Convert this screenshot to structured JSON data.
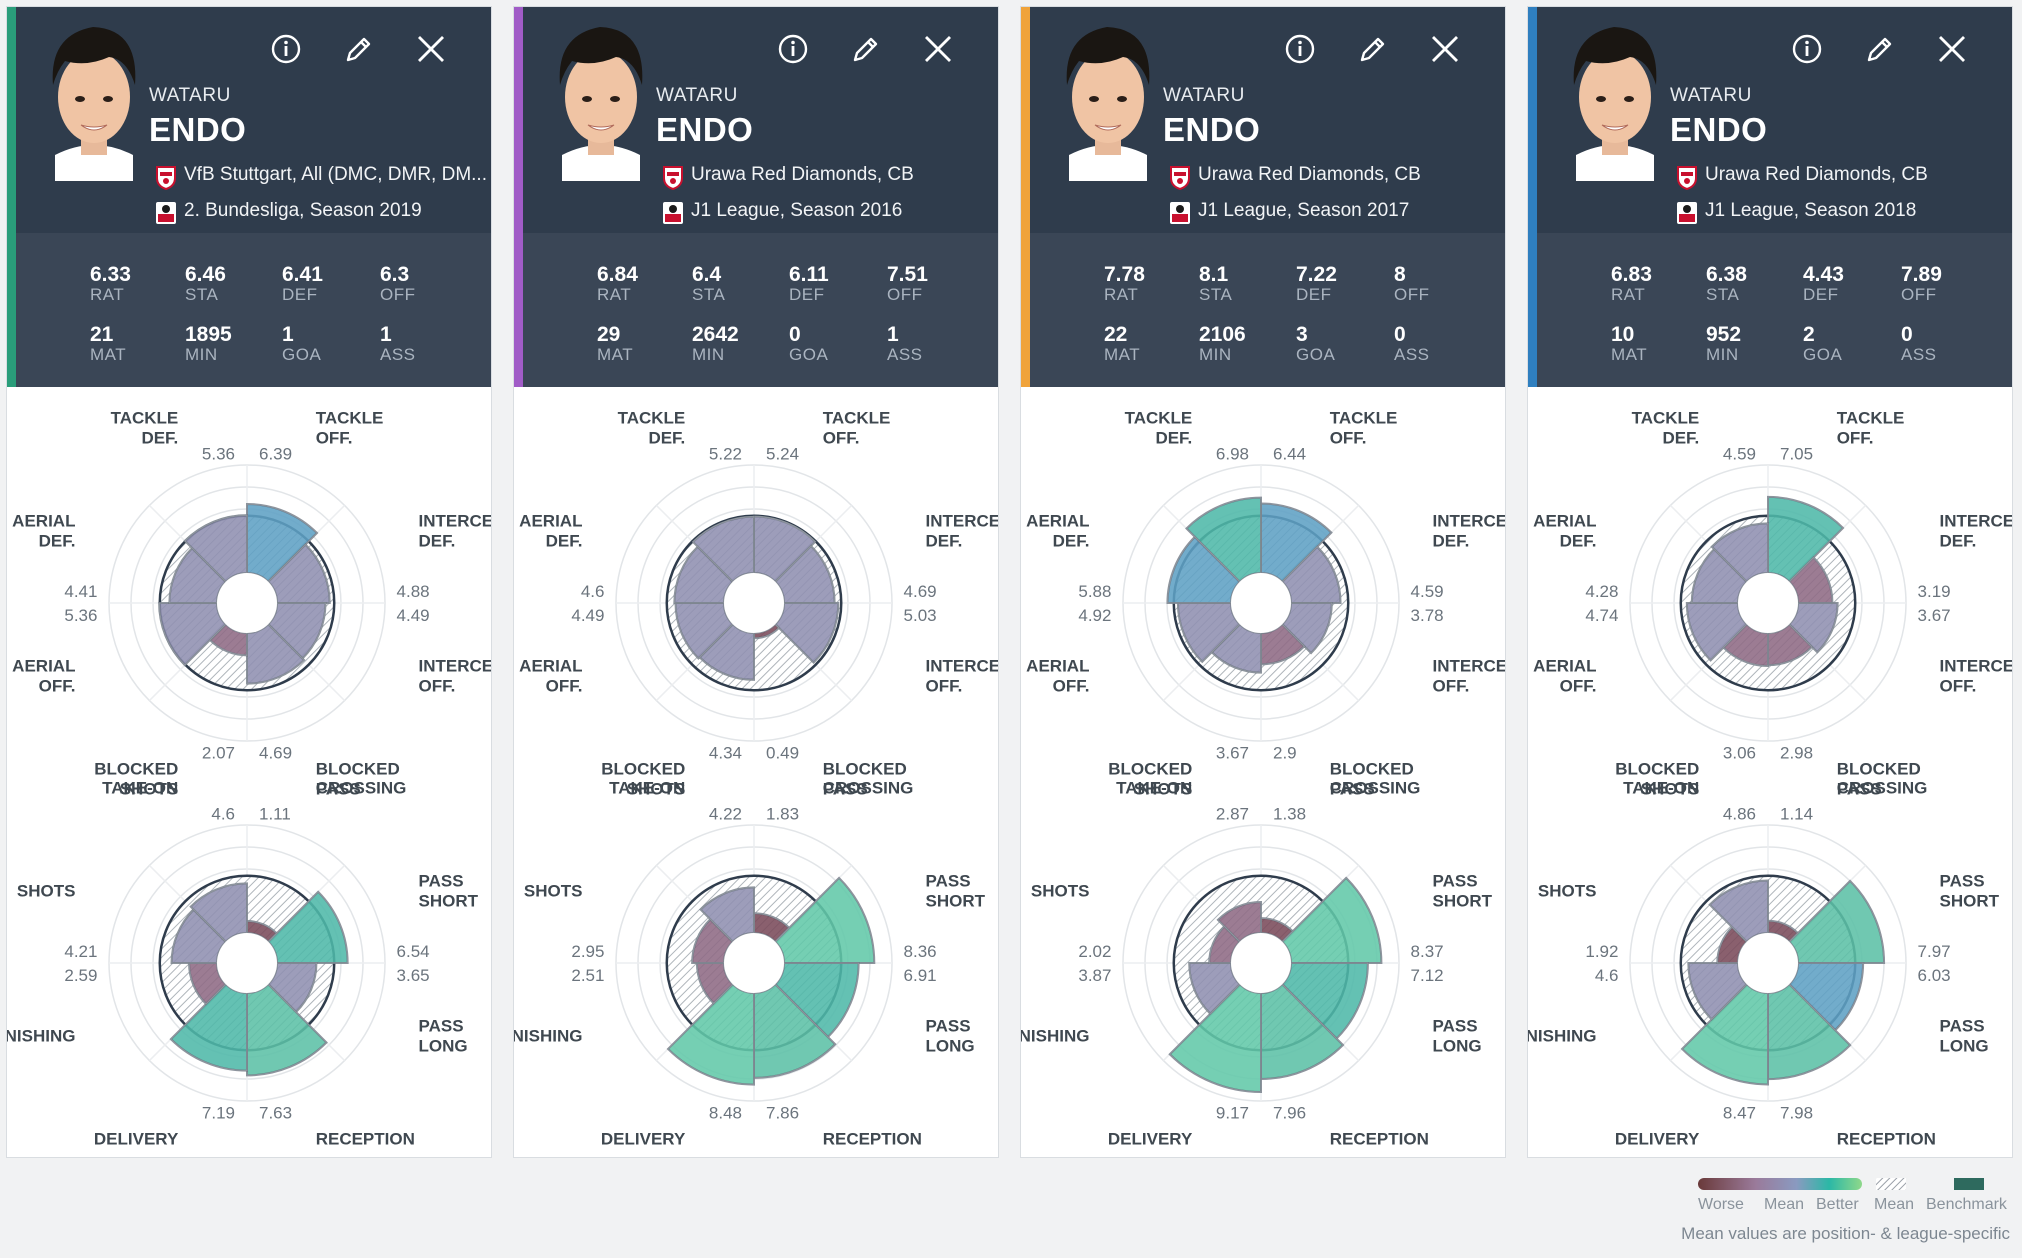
{
  "colors": {
    "header_bg": "#2f3c4c",
    "stats_bg": "#3a4656",
    "accents": [
      "#2a9d7a",
      "#a15cc7",
      "#f0a33a",
      "#2f7fbf"
    ],
    "worse": "#7a4a5a",
    "mean": "#9a9ab8",
    "better": "#2bb8a6",
    "benchmark": "#2e6a5e"
  },
  "defense_labels": [
    [
      "TACKLE",
      "OFF."
    ],
    [
      "INTERCEPT",
      "DEF."
    ],
    [
      "INTERCEPT",
      "OFF."
    ],
    [
      "BLOCKED",
      "PASS"
    ],
    [
      "BLOCKED",
      "SHOTS"
    ],
    [
      "AERIAL",
      "OFF."
    ],
    [
      "AERIAL",
      "DEF."
    ],
    [
      "TACKLE",
      "DEF."
    ]
  ],
  "offense_labels": [
    [
      "CROSSING"
    ],
    [
      "PASS",
      "SHORT"
    ],
    [
      "PASS",
      "LONG"
    ],
    [
      "RECEPTION"
    ],
    [
      "DELIVERY"
    ],
    [
      "FINISHING"
    ],
    [
      "SHOTS"
    ],
    [
      "TAKE-ON"
    ]
  ],
  "cards": [
    {
      "first_name": "WATARU",
      "last_name": "ENDO",
      "team": "VfB Stuttgart, All (DMC, DMR, DM...",
      "league": "2. Bundesliga, Season 2019",
      "team_badge": "stuttgart-badge",
      "league_badge": "bundesliga2-badge",
      "stats": [
        {
          "value": "6.33",
          "label": "RAT"
        },
        {
          "value": "6.46",
          "label": "STA"
        },
        {
          "value": "6.41",
          "label": "DEF"
        },
        {
          "value": "6.3",
          "label": "OFF"
        },
        {
          "value": "21",
          "label": "MAT"
        },
        {
          "value": "1895",
          "label": "MIN"
        },
        {
          "value": "1",
          "label": "GOA"
        },
        {
          "value": "1",
          "label": "ASS"
        }
      ],
      "defense": [
        "6.39",
        "4.88",
        "4.49",
        "4.69",
        "2.07",
        "5.36",
        "4.41",
        "5.36"
      ],
      "offense": [
        "1.11",
        "6.54",
        "3.65",
        "7.63",
        "7.19",
        "2.59",
        "4.21",
        "4.6"
      ]
    },
    {
      "first_name": "WATARU",
      "last_name": "ENDO",
      "team": "Urawa Red Diamonds, CB",
      "league": "J1 League, Season 2016",
      "team_badge": "urawa-badge",
      "league_badge": "j1-league-badge",
      "stats": [
        {
          "value": "6.84",
          "label": "RAT"
        },
        {
          "value": "6.4",
          "label": "STA"
        },
        {
          "value": "6.11",
          "label": "DEF"
        },
        {
          "value": "7.51",
          "label": "OFF"
        },
        {
          "value": "29",
          "label": "MAT"
        },
        {
          "value": "2642",
          "label": "MIN"
        },
        {
          "value": "0",
          "label": "GOA"
        },
        {
          "value": "1",
          "label": "ASS"
        }
      ],
      "defense": [
        "5.24",
        "4.69",
        "5.03",
        "0.49",
        "4.34",
        "4.49",
        "4.6",
        "5.22"
      ],
      "offense": [
        "1.83",
        "8.36",
        "6.91",
        "7.86",
        "8.48",
        "2.51",
        "2.95",
        "4.22"
      ]
    },
    {
      "first_name": "WATARU",
      "last_name": "ENDO",
      "team": "Urawa Red Diamonds, CB",
      "league": "J1 League, Season 2017",
      "team_badge": "urawa-badge",
      "league_badge": "j1-league-badge",
      "stats": [
        {
          "value": "7.78",
          "label": "RAT"
        },
        {
          "value": "8.1",
          "label": "STA"
        },
        {
          "value": "7.22",
          "label": "DEF"
        },
        {
          "value": "8",
          "label": "OFF"
        },
        {
          "value": "22",
          "label": "MAT"
        },
        {
          "value": "2106",
          "label": "MIN"
        },
        {
          "value": "3",
          "label": "GOA"
        },
        {
          "value": "0",
          "label": "ASS"
        }
      ],
      "defense": [
        "6.44",
        "4.59",
        "3.78",
        "2.9",
        "3.67",
        "4.92",
        "5.88",
        "6.98"
      ],
      "offense": [
        "1.38",
        "8.37",
        "7.12",
        "7.96",
        "9.17",
        "3.87",
        "2.02",
        "2.87"
      ]
    },
    {
      "first_name": "WATARU",
      "last_name": "ENDO",
      "team": "Urawa Red Diamonds, CB",
      "league": "J1 League, Season 2018",
      "team_badge": "urawa-badge",
      "league_badge": "j1-league-badge",
      "stats": [
        {
          "value": "6.83",
          "label": "RAT"
        },
        {
          "value": "6.38",
          "label": "STA"
        },
        {
          "value": "4.43",
          "label": "DEF"
        },
        {
          "value": "7.89",
          "label": "OFF"
        },
        {
          "value": "10",
          "label": "MAT"
        },
        {
          "value": "952",
          "label": "MIN"
        },
        {
          "value": "2",
          "label": "GOA"
        },
        {
          "value": "0",
          "label": "ASS"
        }
      ],
      "defense": [
        "7.05",
        "3.19",
        "3.67",
        "2.98",
        "3.06",
        "4.74",
        "4.28",
        "4.59"
      ],
      "offense": [
        "1.14",
        "7.97",
        "6.03",
        "7.98",
        "8.47",
        "4.6",
        "1.92",
        "4.86"
      ]
    }
  ],
  "legend": {
    "worse": "Worse",
    "mean": "Mean",
    "better": "Better",
    "mean2": "Mean",
    "benchmark": "Benchmark",
    "note": "Mean values are position- & league-specific"
  }
}
